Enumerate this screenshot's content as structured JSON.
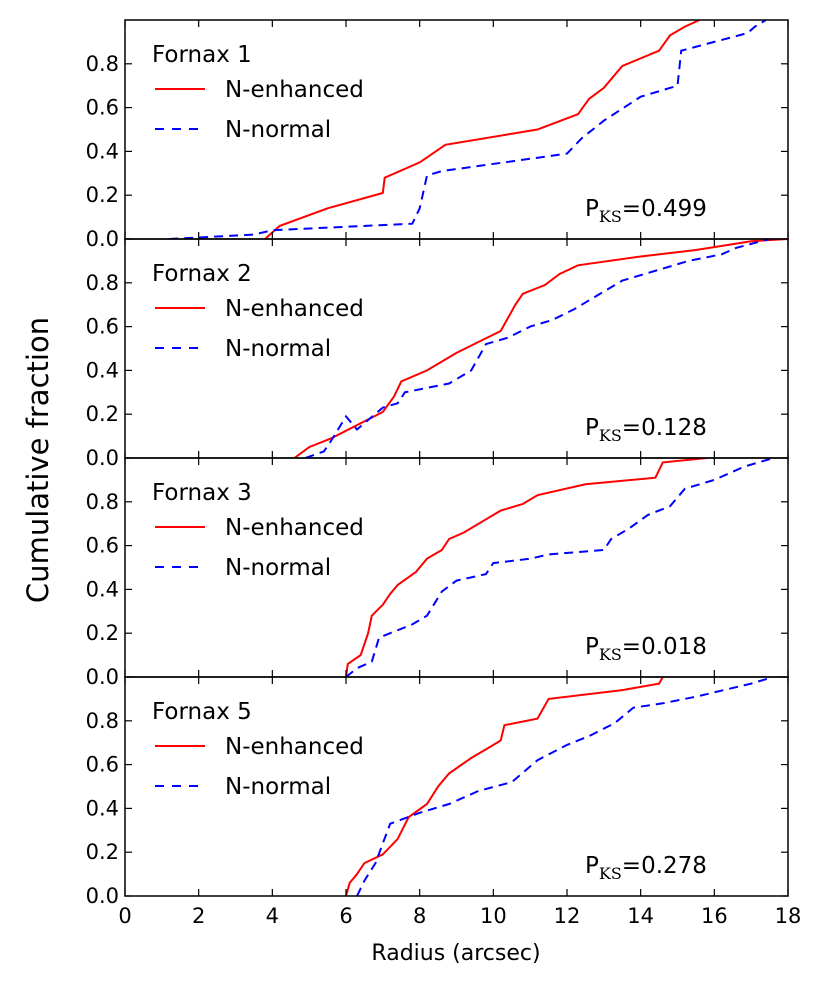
{
  "chart_data": {
    "type": "line",
    "xlabel": "Radius (arcsec)",
    "ylabel": "Cumulative fraction",
    "xlim": [
      0,
      18
    ],
    "ylim": [
      0,
      1
    ],
    "x_ticks": [
      "0",
      "2",
      "4",
      "6",
      "8",
      "10",
      "12",
      "14",
      "16",
      "18"
    ],
    "y_ticks": [
      "0.0",
      "0.2",
      "0.4",
      "0.6",
      "0.8"
    ],
    "legend_position": "top-left",
    "series_styles": [
      {
        "name": "N-enhanced",
        "color": "#ff0000",
        "dash": "solid"
      },
      {
        "name": "N-normal",
        "color": "#0000ff",
        "dash": "dashed"
      }
    ],
    "panels": [
      {
        "title": "Fornax 1",
        "pks_label": "P",
        "pks_sub": "KS",
        "pks_value": "=0.499",
        "series": [
          {
            "name": "N-enhanced",
            "points": [
              [
                3.8,
                0
              ],
              [
                4.2,
                0.06
              ],
              [
                5.5,
                0.14
              ],
              [
                7.0,
                0.21
              ],
              [
                7.05,
                0.28
              ],
              [
                8.0,
                0.35
              ],
              [
                8.7,
                0.43
              ],
              [
                11.2,
                0.5
              ],
              [
                12.3,
                0.57
              ],
              [
                12.6,
                0.64
              ],
              [
                13.0,
                0.69
              ],
              [
                13.5,
                0.79
              ],
              [
                14.5,
                0.86
              ],
              [
                14.8,
                0.93
              ],
              [
                15.2,
                0.97
              ],
              [
                15.6,
                1.0
              ]
            ]
          },
          {
            "name": "N-normal",
            "points": [
              [
                1.2,
                0
              ],
              [
                3.5,
                0.02
              ],
              [
                4.0,
                0.04
              ],
              [
                7.8,
                0.07
              ],
              [
                8.0,
                0.14
              ],
              [
                8.2,
                0.29
              ],
              [
                8.6,
                0.31
              ],
              [
                12.0,
                0.39
              ],
              [
                12.4,
                0.46
              ],
              [
                13.0,
                0.54
              ],
              [
                14.0,
                0.65
              ],
              [
                15.0,
                0.7
              ],
              [
                15.1,
                0.86
              ],
              [
                16.0,
                0.9
              ],
              [
                16.9,
                0.94
              ],
              [
                17.1,
                0.97
              ],
              [
                17.4,
                1.0
              ]
            ]
          }
        ]
      },
      {
        "title": "Fornax 2",
        "pks_label": "P",
        "pks_sub": "KS",
        "pks_value": "=0.128",
        "series": [
          {
            "name": "N-enhanced",
            "points": [
              [
                4.6,
                0
              ],
              [
                5.0,
                0.05
              ],
              [
                5.6,
                0.09
              ],
              [
                6.3,
                0.15
              ],
              [
                7.0,
                0.21
              ],
              [
                7.3,
                0.28
              ],
              [
                7.5,
                0.35
              ],
              [
                8.2,
                0.4
              ],
              [
                9.0,
                0.48
              ],
              [
                9.6,
                0.53
              ],
              [
                10.2,
                0.58
              ],
              [
                10.4,
                0.64
              ],
              [
                10.6,
                0.7
              ],
              [
                10.8,
                0.75
              ],
              [
                11.4,
                0.79
              ],
              [
                11.8,
                0.84
              ],
              [
                12.3,
                0.88
              ],
              [
                14.0,
                0.92
              ],
              [
                15.5,
                0.95
              ],
              [
                17.0,
                0.99
              ],
              [
                18.0,
                1.0
              ]
            ]
          },
          {
            "name": "N-normal",
            "points": [
              [
                4.9,
                0
              ],
              [
                5.4,
                0.03
              ],
              [
                5.6,
                0.08
              ],
              [
                6.0,
                0.19
              ],
              [
                6.3,
                0.13
              ],
              [
                7.0,
                0.23
              ],
              [
                7.4,
                0.25
              ],
              [
                7.6,
                0.3
              ],
              [
                8.8,
                0.34
              ],
              [
                9.4,
                0.4
              ],
              [
                9.8,
                0.52
              ],
              [
                10.4,
                0.55
              ],
              [
                11.0,
                0.6
              ],
              [
                11.6,
                0.63
              ],
              [
                12.2,
                0.68
              ],
              [
                12.6,
                0.72
              ],
              [
                13.5,
                0.81
              ],
              [
                14.5,
                0.86
              ],
              [
                15.3,
                0.9
              ],
              [
                16.2,
                0.93
              ],
              [
                16.6,
                0.96
              ],
              [
                17.5,
                1.0
              ]
            ]
          }
        ]
      },
      {
        "title": "Fornax 3",
        "pks_label": "P",
        "pks_sub": "KS",
        "pks_value": "=0.018",
        "series": [
          {
            "name": "N-enhanced",
            "points": [
              [
                6.0,
                0
              ],
              [
                6.05,
                0.06
              ],
              [
                6.4,
                0.1
              ],
              [
                6.6,
                0.2
              ],
              [
                6.7,
                0.28
              ],
              [
                7.0,
                0.33
              ],
              [
                7.2,
                0.38
              ],
              [
                7.4,
                0.42
              ],
              [
                7.9,
                0.48
              ],
              [
                8.2,
                0.54
              ],
              [
                8.6,
                0.58
              ],
              [
                8.8,
                0.63
              ],
              [
                9.2,
                0.66
              ],
              [
                9.8,
                0.72
              ],
              [
                10.2,
                0.76
              ],
              [
                10.8,
                0.79
              ],
              [
                11.2,
                0.83
              ],
              [
                12.5,
                0.88
              ],
              [
                14.4,
                0.91
              ],
              [
                14.6,
                0.98
              ],
              [
                15.8,
                1.0
              ]
            ]
          },
          {
            "name": "N-normal",
            "points": [
              [
                6.0,
                0
              ],
              [
                6.3,
                0.04
              ],
              [
                6.7,
                0.07
              ],
              [
                6.9,
                0.18
              ],
              [
                7.8,
                0.24
              ],
              [
                8.2,
                0.28
              ],
              [
                8.6,
                0.39
              ],
              [
                9.0,
                0.44
              ],
              [
                9.8,
                0.47
              ],
              [
                10.0,
                0.52
              ],
              [
                11.0,
                0.54
              ],
              [
                11.5,
                0.56
              ],
              [
                13.0,
                0.58
              ],
              [
                13.2,
                0.63
              ],
              [
                13.7,
                0.68
              ],
              [
                14.2,
                0.74
              ],
              [
                14.8,
                0.78
              ],
              [
                15.2,
                0.86
              ],
              [
                16.0,
                0.9
              ],
              [
                16.8,
                0.96
              ],
              [
                17.6,
                1.0
              ]
            ]
          }
        ]
      },
      {
        "title": "Fornax 5",
        "pks_label": "P",
        "pks_sub": "KS",
        "pks_value": "=0.278",
        "series": [
          {
            "name": "N-enhanced",
            "points": [
              [
                6.0,
                0
              ],
              [
                6.1,
                0.06
              ],
              [
                6.3,
                0.1
              ],
              [
                6.5,
                0.15
              ],
              [
                7.0,
                0.19
              ],
              [
                7.4,
                0.26
              ],
              [
                7.7,
                0.36
              ],
              [
                8.2,
                0.42
              ],
              [
                8.5,
                0.5
              ],
              [
                8.8,
                0.56
              ],
              [
                9.4,
                0.63
              ],
              [
                9.9,
                0.68
              ],
              [
                10.2,
                0.71
              ],
              [
                10.3,
                0.78
              ],
              [
                11.2,
                0.81
              ],
              [
                11.5,
                0.9
              ],
              [
                13.5,
                0.94
              ],
              [
                14.5,
                0.97
              ],
              [
                14.6,
                1.0
              ]
            ]
          },
          {
            "name": "N-normal",
            "points": [
              [
                6.3,
                0
              ],
              [
                6.5,
                0.07
              ],
              [
                6.8,
                0.15
              ],
              [
                7.0,
                0.24
              ],
              [
                7.2,
                0.33
              ],
              [
                8.0,
                0.38
              ],
              [
                8.8,
                0.42
              ],
              [
                9.6,
                0.48
              ],
              [
                10.5,
                0.52
              ],
              [
                11.2,
                0.62
              ],
              [
                12.0,
                0.69
              ],
              [
                12.6,
                0.73
              ],
              [
                13.3,
                0.79
              ],
              [
                13.8,
                0.86
              ],
              [
                14.6,
                0.88
              ],
              [
                15.5,
                0.91
              ],
              [
                17.0,
                0.97
              ],
              [
                17.6,
                1.0
              ]
            ]
          }
        ]
      }
    ]
  }
}
